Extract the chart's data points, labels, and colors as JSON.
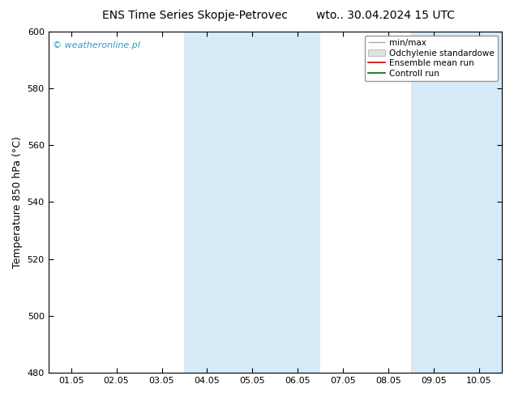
{
  "title_left": "ENS Time Series Skopje-Petrovec",
  "title_right": "wto.. 30.04.2024 15 UTC",
  "ylabel": "Temperature 850 hPa (°C)",
  "ylim": [
    480,
    600
  ],
  "yticks": [
    480,
    500,
    520,
    540,
    560,
    580,
    600
  ],
  "xtick_labels": [
    "01.05",
    "02.05",
    "03.05",
    "04.05",
    "05.05",
    "06.05",
    "07.05",
    "08.05",
    "09.05",
    "10.05"
  ],
  "shaded_regions": [
    {
      "xstart": 3,
      "xend": 5,
      "color": "#d6eaf8"
    },
    {
      "xstart": 8,
      "xend": 9,
      "color": "#d6eaf8"
    }
  ],
  "watermark": "© weatheronline.pl",
  "watermark_color": "#3399cc",
  "legend_labels": [
    "min/max",
    "Odchylenie standardowe",
    "Ensemble mean run",
    "Controll run"
  ],
  "legend_line_colors": [
    "#aaaaaa",
    "#cccccc",
    "#cc0000",
    "#006600"
  ],
  "bg_color": "#ffffff",
  "title_fontsize": 10,
  "axis_label_fontsize": 9,
  "tick_fontsize": 8,
  "legend_fontsize": 7.5
}
